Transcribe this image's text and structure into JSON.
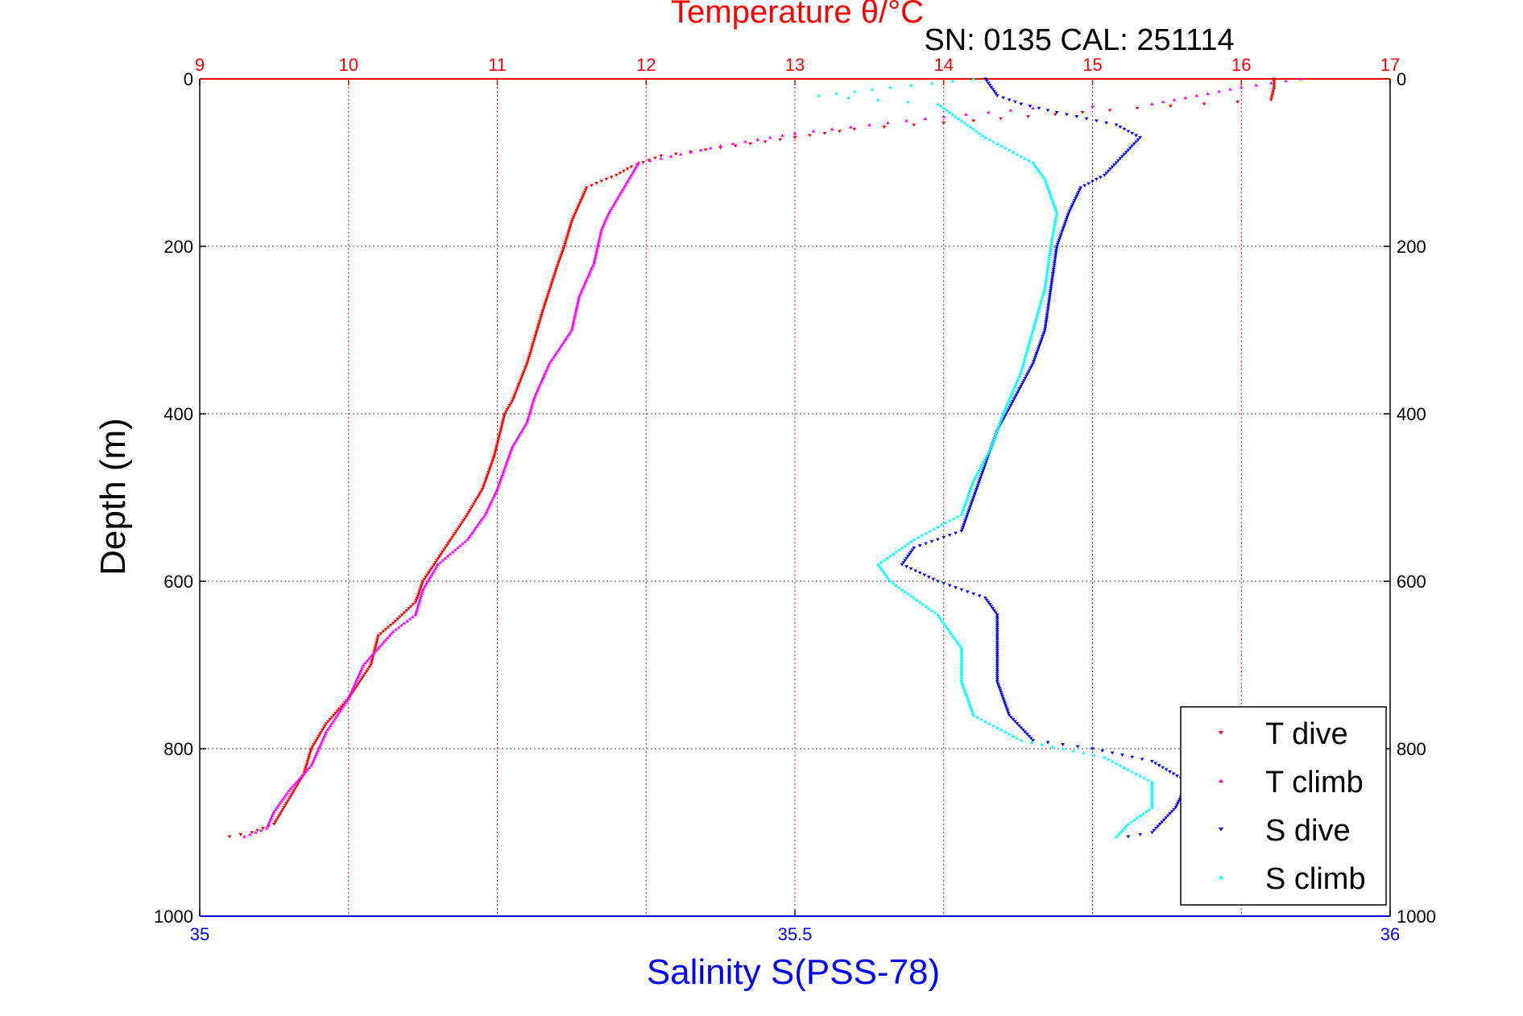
{
  "chart_data": {
    "type": "scatter",
    "title": "Temperature θ/°C",
    "subtitle": "SN: 0135  CAL: 251114",
    "xlabel_bottom": "Salinity S(PSS-78)",
    "xlabel_top": "Temperature θ/°C",
    "ylabel": "Depth (m)",
    "ylim": [
      0,
      1000
    ],
    "y_reversed": true,
    "xlim_bottom": [
      35,
      36
    ],
    "xlim_top": [
      9,
      17
    ],
    "y_ticks": [
      "0",
      "200",
      "400",
      "600",
      "800",
      "1000"
    ],
    "x_ticks_bottom": [
      "35",
      "35.5",
      "36"
    ],
    "x_ticks_top": [
      "9",
      "10",
      "11",
      "12",
      "13",
      "14",
      "15",
      "16",
      "17"
    ],
    "grid": true,
    "legend_position": "bottom-right",
    "colors": {
      "t_dive": "#ff0000",
      "t_climb": "#ff00ff",
      "s_dive": "#0000ff",
      "s_climb": "#00ffff",
      "top_axis": "#ff0000",
      "bottom_axis": "#0000ff"
    },
    "series": [
      {
        "name": "T dive",
        "axis": "top",
        "marker": "triangle-down",
        "points": [
          [
            16.22,
            0
          ],
          [
            16.22,
            10
          ],
          [
            16.2,
            25
          ],
          [
            15.3,
            35
          ],
          [
            14.2,
            50
          ],
          [
            13.4,
            60
          ],
          [
            12.8,
            75
          ],
          [
            12.1,
            92
          ],
          [
            11.9,
            105
          ],
          [
            11.8,
            115
          ],
          [
            11.7,
            122
          ],
          [
            11.6,
            130
          ],
          [
            11.55,
            150
          ],
          [
            11.5,
            170
          ],
          [
            11.45,
            200
          ],
          [
            11.4,
            225
          ],
          [
            11.3,
            280
          ],
          [
            11.2,
            340
          ],
          [
            11.1,
            385
          ],
          [
            11.05,
            400
          ],
          [
            10.98,
            450
          ],
          [
            10.9,
            490
          ],
          [
            10.8,
            520
          ],
          [
            10.65,
            560
          ],
          [
            10.5,
            600
          ],
          [
            10.45,
            625
          ],
          [
            10.3,
            650
          ],
          [
            10.2,
            665
          ],
          [
            10.15,
            700
          ],
          [
            10.0,
            740
          ],
          [
            9.85,
            770
          ],
          [
            9.75,
            800
          ],
          [
            9.7,
            830
          ],
          [
            9.6,
            860
          ],
          [
            9.5,
            890
          ],
          [
            9.35,
            900
          ],
          [
            9.2,
            905
          ]
        ]
      },
      {
        "name": "T climb",
        "axis": "top",
        "marker": "triangle-up",
        "points": [
          [
            16.4,
            0
          ],
          [
            16.0,
            10
          ],
          [
            15.7,
            20
          ],
          [
            15.4,
            30
          ],
          [
            14.6,
            35
          ],
          [
            14.0,
            45
          ],
          [
            13.5,
            55
          ],
          [
            13.0,
            65
          ],
          [
            12.5,
            80
          ],
          [
            12.1,
            95
          ],
          [
            11.95,
            100
          ],
          [
            11.85,
            130
          ],
          [
            11.75,
            160
          ],
          [
            11.7,
            180
          ],
          [
            11.65,
            220
          ],
          [
            11.55,
            260
          ],
          [
            11.5,
            300
          ],
          [
            11.35,
            340
          ],
          [
            11.25,
            380
          ],
          [
            11.2,
            410
          ],
          [
            11.1,
            440
          ],
          [
            11.0,
            490
          ],
          [
            10.92,
            520
          ],
          [
            10.8,
            550
          ],
          [
            10.6,
            580
          ],
          [
            10.5,
            610
          ],
          [
            10.45,
            640
          ],
          [
            10.3,
            660
          ],
          [
            10.1,
            700
          ],
          [
            10.0,
            740
          ],
          [
            9.85,
            780
          ],
          [
            9.75,
            820
          ],
          [
            9.6,
            850
          ],
          [
            9.5,
            875
          ],
          [
            9.45,
            895
          ],
          [
            9.3,
            905
          ]
        ]
      },
      {
        "name": "S dive",
        "axis": "bottom",
        "marker": "triangle-down",
        "points": [
          [
            35.66,
            0
          ],
          [
            35.67,
            20
          ],
          [
            35.69,
            30
          ],
          [
            35.72,
            40
          ],
          [
            35.77,
            55
          ],
          [
            35.79,
            70
          ],
          [
            35.78,
            85
          ],
          [
            35.77,
            100
          ],
          [
            35.76,
            115
          ],
          [
            35.74,
            130
          ],
          [
            35.73,
            160
          ],
          [
            35.72,
            200
          ],
          [
            35.715,
            250
          ],
          [
            35.71,
            300
          ],
          [
            35.7,
            340
          ],
          [
            35.685,
            380
          ],
          [
            35.67,
            420
          ],
          [
            35.66,
            460
          ],
          [
            35.65,
            500
          ],
          [
            35.64,
            540
          ],
          [
            35.6,
            560
          ],
          [
            35.59,
            580
          ],
          [
            35.62,
            600
          ],
          [
            35.66,
            620
          ],
          [
            35.67,
            640
          ],
          [
            35.67,
            680
          ],
          [
            35.67,
            720
          ],
          [
            35.68,
            760
          ],
          [
            35.7,
            790
          ],
          [
            35.75,
            800
          ],
          [
            35.8,
            815
          ],
          [
            35.83,
            840
          ],
          [
            35.82,
            870
          ],
          [
            35.8,
            900
          ],
          [
            35.78,
            905
          ]
        ]
      },
      {
        "name": "S climb",
        "axis": "bottom",
        "marker": "triangle-up",
        "points": [
          [
            35.65,
            0
          ],
          [
            35.58,
            10
          ],
          [
            35.52,
            20
          ],
          [
            35.62,
            30
          ],
          [
            35.64,
            50
          ],
          [
            35.66,
            70
          ],
          [
            35.68,
            85
          ],
          [
            35.7,
            100
          ],
          [
            35.71,
            120
          ],
          [
            35.72,
            160
          ],
          [
            35.715,
            200
          ],
          [
            35.71,
            250
          ],
          [
            35.7,
            300
          ],
          [
            35.69,
            350
          ],
          [
            35.675,
            400
          ],
          [
            35.665,
            440
          ],
          [
            35.65,
            480
          ],
          [
            35.64,
            520
          ],
          [
            35.6,
            550
          ],
          [
            35.57,
            580
          ],
          [
            35.58,
            600
          ],
          [
            35.62,
            640
          ],
          [
            35.64,
            680
          ],
          [
            35.64,
            720
          ],
          [
            35.65,
            760
          ],
          [
            35.69,
            790
          ],
          [
            35.76,
            810
          ],
          [
            35.8,
            840
          ],
          [
            35.8,
            870
          ],
          [
            35.78,
            890
          ],
          [
            35.77,
            905
          ]
        ]
      }
    ]
  }
}
